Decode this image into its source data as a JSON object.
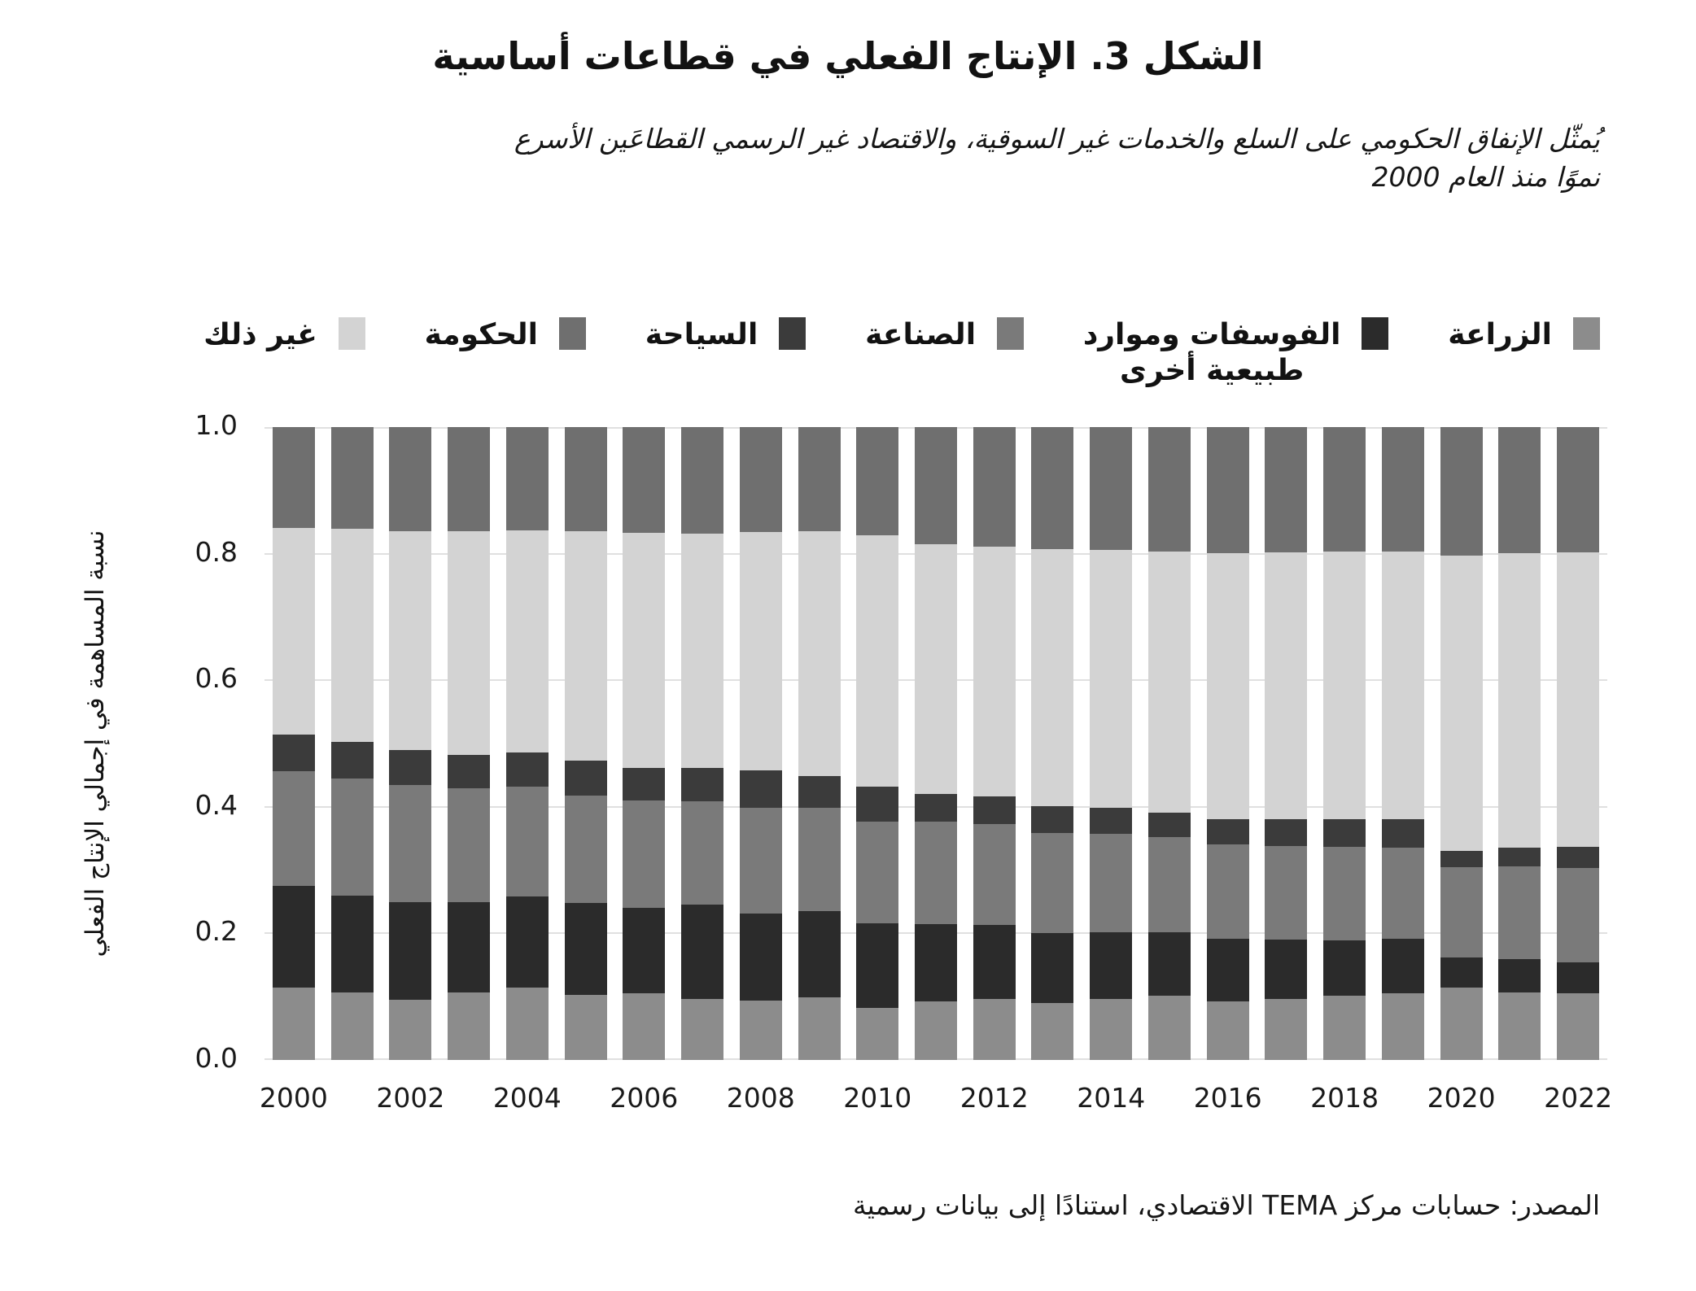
{
  "header": {
    "title": "الشكل 3. الإنتاج الفعلي في قطاعات أساسية",
    "subtitle_line1": "يُمثّل الإنفاق الحكومي على السلع والخدمات غير السوقية، والاقتصاد غير الرسمي القطاعَين الأسرع",
    "subtitle_line2": "نموًا منذ العام 2000"
  },
  "legend": {
    "items": [
      {
        "label_lines": [
          "الزراعة"
        ],
        "color": "#8c8c8c"
      },
      {
        "label_lines": [
          "الفوسفات وموارد",
          "طبيعية أخرى"
        ],
        "color": "#2b2b2b"
      },
      {
        "label_lines": [
          "الصناعة"
        ],
        "color": "#7a7a7a"
      },
      {
        "label_lines": [
          "السياحة"
        ],
        "color": "#3b3b3b"
      },
      {
        "label_lines": [
          "الحكومة"
        ],
        "color": "#6f6f6f"
      },
      {
        "label_lines": [
          "غير ذلك"
        ],
        "color": "#d3d3d3"
      }
    ]
  },
  "axes": {
    "y_title": "نسبة المساهمة في إجمالي الإنتاج الفعلي",
    "y_ticks": [
      {
        "label": "1.0",
        "value": 1.0
      },
      {
        "label": "0.8",
        "value": 0.8
      },
      {
        "label": "0.6",
        "value": 0.6
      },
      {
        "label": "0.4",
        "value": 0.4
      },
      {
        "label": "0.2",
        "value": 0.2
      },
      {
        "label": "0.0",
        "value": 0.0
      }
    ],
    "x_ticks": [
      "2000",
      "2002",
      "2004",
      "2006",
      "2008",
      "2010",
      "2012",
      "2014",
      "2016",
      "2018",
      "2020",
      "2022"
    ]
  },
  "source": "المصدر: حسابات مركز TEMA الاقتصادي، استنادًا إلى بيانات رسمية",
  "chart_data": {
    "type": "bar",
    "stacked": true,
    "title": "الشكل 3. الإنتاج الفعلي في قطاعات أساسية",
    "ylabel": "نسبة المساهمة في إجمالي الإنتاج الفعلي",
    "xlabel": "",
    "ylim": [
      0,
      1.0
    ],
    "grid": true,
    "legend_position": "top",
    "categories": [
      "2000",
      "2001",
      "2002",
      "2003",
      "2004",
      "2005",
      "2006",
      "2007",
      "2008",
      "2009",
      "2010",
      "2011",
      "2012",
      "2013",
      "2014",
      "2015",
      "2016",
      "2017",
      "2018",
      "2019",
      "2020",
      "2021",
      "2022"
    ],
    "stack_order_bottom_to_top": [
      "الزراعة",
      "الفوسفات وموارد طبيعية أخرى",
      "الصناعة",
      "السياحة",
      "غير ذلك",
      "الحكومة"
    ],
    "series": [
      {
        "name": "الزراعة",
        "color": "#8c8c8c",
        "values": [
          0.114,
          0.107,
          0.095,
          0.107,
          0.114,
          0.103,
          0.105,
          0.097,
          0.094,
          0.099,
          0.082,
          0.093,
          0.096,
          0.09,
          0.096,
          0.101,
          0.093,
          0.096,
          0.101,
          0.105,
          0.114,
          0.107,
          0.105
        ]
      },
      {
        "name": "الفوسفات وموارد طبيعية أخرى",
        "color": "#2b2b2b",
        "values": [
          0.161,
          0.153,
          0.155,
          0.142,
          0.145,
          0.145,
          0.135,
          0.148,
          0.138,
          0.136,
          0.134,
          0.122,
          0.118,
          0.111,
          0.106,
          0.101,
          0.098,
          0.094,
          0.088,
          0.086,
          0.048,
          0.053,
          0.049
        ]
      },
      {
        "name": "الصناعة",
        "color": "#7a7a7a",
        "values": [
          0.181,
          0.185,
          0.185,
          0.18,
          0.173,
          0.17,
          0.17,
          0.164,
          0.167,
          0.163,
          0.161,
          0.162,
          0.159,
          0.158,
          0.155,
          0.15,
          0.15,
          0.148,
          0.148,
          0.144,
          0.143,
          0.146,
          0.149
        ]
      },
      {
        "name": "السياحة",
        "color": "#3b3b3b",
        "values": [
          0.058,
          0.058,
          0.055,
          0.053,
          0.054,
          0.055,
          0.052,
          0.052,
          0.058,
          0.051,
          0.055,
          0.043,
          0.044,
          0.042,
          0.041,
          0.039,
          0.04,
          0.042,
          0.044,
          0.046,
          0.025,
          0.029,
          0.034
        ]
      },
      {
        "name": "غير ذلك",
        "color": "#d3d3d3",
        "values": [
          0.326,
          0.336,
          0.346,
          0.353,
          0.351,
          0.362,
          0.371,
          0.37,
          0.377,
          0.386,
          0.397,
          0.395,
          0.394,
          0.406,
          0.408,
          0.413,
          0.42,
          0.422,
          0.423,
          0.422,
          0.467,
          0.466,
          0.465
        ]
      },
      {
        "name": "الحكومة",
        "color": "#6f6f6f",
        "values": [
          0.16,
          0.161,
          0.164,
          0.165,
          0.163,
          0.165,
          0.167,
          0.169,
          0.166,
          0.165,
          0.171,
          0.185,
          0.189,
          0.193,
          0.194,
          0.196,
          0.199,
          0.198,
          0.196,
          0.197,
          0.203,
          0.199,
          0.198
        ]
      }
    ],
    "legend_series_order": [
      0,
      1,
      2,
      3,
      5,
      4
    ]
  }
}
